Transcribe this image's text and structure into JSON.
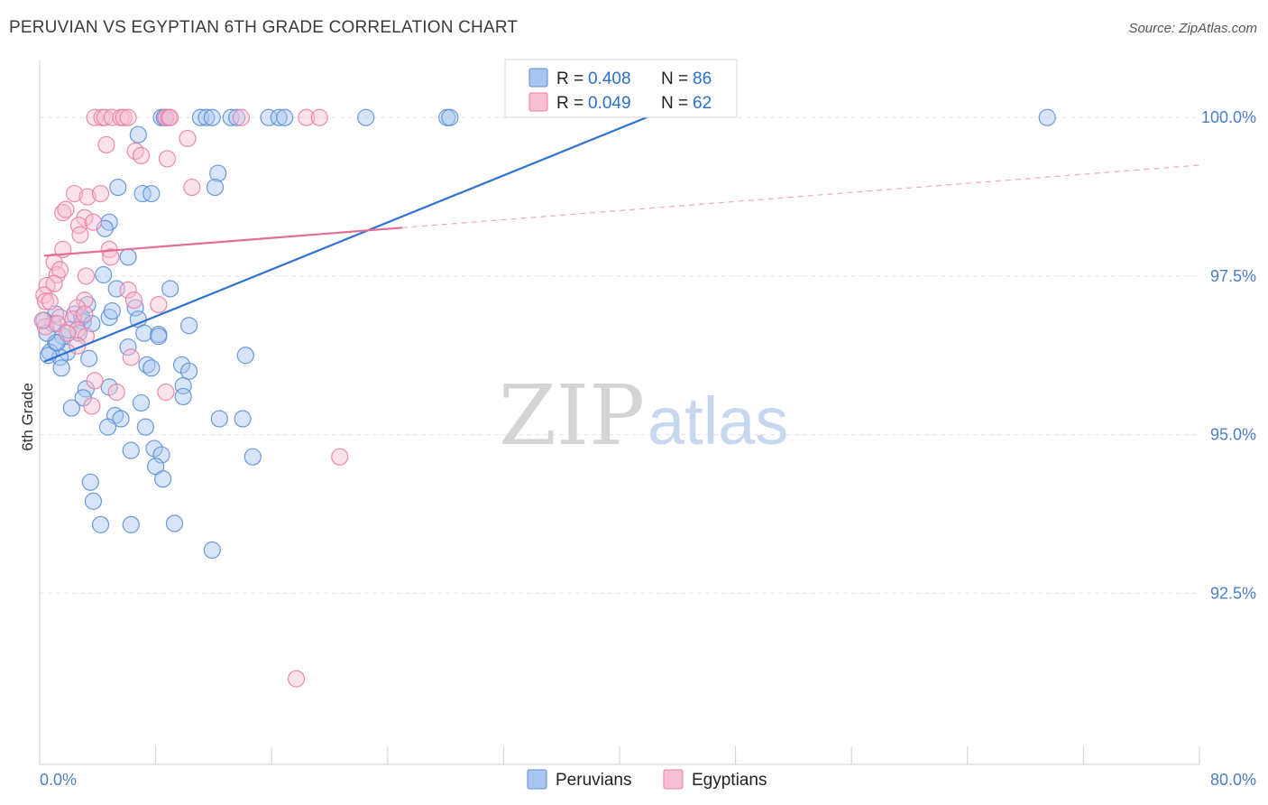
{
  "title": "PERUVIAN VS EGYPTIAN 6TH GRADE CORRELATION CHART",
  "source": "Source: ZipAtlas.com",
  "watermark": {
    "zip": "ZIP",
    "atlas": "atlas"
  },
  "chart_data": {
    "type": "scatter",
    "xlabel": "",
    "ylabel": "6th Grade",
    "xlim": [
      0,
      80
    ],
    "ylim": [
      89.8,
      100.9
    ],
    "x_tick_labels": [
      "0.0%",
      "80.0%"
    ],
    "y_ticks": [
      {
        "value": 100.0,
        "label": "100.0%"
      },
      {
        "value": 97.5,
        "label": "97.5%"
      },
      {
        "value": 95.0,
        "label": "95.0%"
      },
      {
        "value": 92.5,
        "label": "92.5%"
      }
    ],
    "legend": [
      {
        "name": "Peruvians",
        "R_label": "R = ",
        "R": "0.408",
        "N_label": "N = ",
        "N": "86",
        "color": "#5b8fd6",
        "fill": "#a9c6ef"
      },
      {
        "name": "Egyptians",
        "R_label": "R = ",
        "R": "0.049",
        "N_label": "N = ",
        "N": "62",
        "color": "#e880a4",
        "fill": "#f6bfd3"
      }
    ],
    "series": [
      {
        "name": "Peruvians",
        "color": "#5b8fd6",
        "trend": {
          "x0": 0.3,
          "y0": 96.15,
          "x1": 44.0,
          "y1": 100.2,
          "solid_end": 44.0
        },
        "points": [
          [
            8.4,
            100.0
          ],
          [
            8.6,
            100.0
          ],
          [
            8.7,
            100.0
          ],
          [
            11.1,
            100.0
          ],
          [
            11.5,
            100.0
          ],
          [
            11.9,
            100.0
          ],
          [
            13.2,
            100.0
          ],
          [
            13.6,
            100.0
          ],
          [
            15.8,
            100.0
          ],
          [
            16.5,
            100.0
          ],
          [
            16.9,
            100.0
          ],
          [
            22.5,
            100.0
          ],
          [
            28.1,
            100.0
          ],
          [
            28.3,
            100.0
          ],
          [
            69.5,
            100.0
          ],
          [
            6.8,
            99.73
          ],
          [
            12.3,
            99.12
          ],
          [
            5.4,
            98.9
          ],
          [
            7.1,
            98.8
          ],
          [
            7.7,
            98.8
          ],
          [
            12.1,
            98.9
          ],
          [
            4.8,
            98.35
          ],
          [
            4.5,
            98.25
          ],
          [
            6.1,
            97.8
          ],
          [
            4.4,
            97.52
          ],
          [
            9.0,
            97.3
          ],
          [
            5.3,
            97.3
          ],
          [
            6.6,
            97.0
          ],
          [
            3.3,
            97.05
          ],
          [
            2.4,
            96.9
          ],
          [
            2.9,
            96.85
          ],
          [
            4.8,
            96.85
          ],
          [
            6.8,
            96.82
          ],
          [
            3.0,
            96.78
          ],
          [
            7.2,
            96.6
          ],
          [
            8.2,
            96.58
          ],
          [
            10.3,
            96.72
          ],
          [
            8.2,
            96.55
          ],
          [
            0.9,
            96.75
          ],
          [
            1.1,
            96.9
          ],
          [
            0.3,
            96.8
          ],
          [
            1.6,
            96.55
          ],
          [
            1.1,
            96.45
          ],
          [
            0.7,
            96.3
          ],
          [
            1.9,
            96.3
          ],
          [
            1.4,
            96.22
          ],
          [
            3.4,
            96.2
          ],
          [
            6.1,
            96.38
          ],
          [
            0.6,
            96.25
          ],
          [
            7.4,
            96.1
          ],
          [
            9.8,
            96.1
          ],
          [
            14.2,
            96.25
          ],
          [
            7.7,
            96.05
          ],
          [
            10.3,
            96.0
          ],
          [
            1.5,
            96.05
          ],
          [
            9.9,
            95.77
          ],
          [
            3.2,
            95.72
          ],
          [
            4.8,
            95.75
          ],
          [
            9.9,
            95.6
          ],
          [
            3.0,
            95.58
          ],
          [
            2.2,
            95.42
          ],
          [
            7.0,
            95.5
          ],
          [
            5.2,
            95.3
          ],
          [
            5.6,
            95.25
          ],
          [
            12.4,
            95.25
          ],
          [
            14.0,
            95.25
          ],
          [
            4.7,
            95.12
          ],
          [
            7.3,
            95.12
          ],
          [
            6.3,
            94.75
          ],
          [
            7.9,
            94.78
          ],
          [
            8.4,
            94.68
          ],
          [
            14.7,
            94.65
          ],
          [
            8.0,
            94.5
          ],
          [
            8.5,
            94.3
          ],
          [
            3.5,
            94.25
          ],
          [
            3.7,
            93.95
          ],
          [
            4.2,
            93.58
          ],
          [
            6.3,
            93.58
          ],
          [
            9.3,
            93.6
          ],
          [
            11.9,
            93.18
          ],
          [
            2.0,
            96.65
          ],
          [
            2.7,
            96.6
          ],
          [
            5.0,
            96.95
          ],
          [
            1.2,
            96.45
          ],
          [
            3.6,
            96.75
          ],
          [
            0.5,
            96.6
          ]
        ]
      },
      {
        "name": "Egyptians",
        "color": "#e880a4",
        "trend": {
          "x0": 0.3,
          "y0": 97.82,
          "x1": 80.0,
          "y1": 99.25,
          "solid_end": 25.0
        },
        "points": [
          [
            3.8,
            100.0
          ],
          [
            4.3,
            100.0
          ],
          [
            4.5,
            100.0
          ],
          [
            5.0,
            100.0
          ],
          [
            5.6,
            100.0
          ],
          [
            5.8,
            100.0
          ],
          [
            6.1,
            100.0
          ],
          [
            8.7,
            100.0
          ],
          [
            8.9,
            100.0
          ],
          [
            9.0,
            100.0
          ],
          [
            13.9,
            100.0
          ],
          [
            18.4,
            100.0
          ],
          [
            19.3,
            100.0
          ],
          [
            10.2,
            99.67
          ],
          [
            4.6,
            99.57
          ],
          [
            6.6,
            99.47
          ],
          [
            7.0,
            99.4
          ],
          [
            8.8,
            99.35
          ],
          [
            10.5,
            98.9
          ],
          [
            2.4,
            98.8
          ],
          [
            3.3,
            98.75
          ],
          [
            4.2,
            98.8
          ],
          [
            1.6,
            98.5
          ],
          [
            1.8,
            98.55
          ],
          [
            3.1,
            98.42
          ],
          [
            2.7,
            98.3
          ],
          [
            3.7,
            98.35
          ],
          [
            2.8,
            98.15
          ],
          [
            1.6,
            97.92
          ],
          [
            4.8,
            97.92
          ],
          [
            4.9,
            97.8
          ],
          [
            1.0,
            97.72
          ],
          [
            1.2,
            97.52
          ],
          [
            1.4,
            97.6
          ],
          [
            3.2,
            97.5
          ],
          [
            0.5,
            97.35
          ],
          [
            1.0,
            97.38
          ],
          [
            0.3,
            97.2
          ],
          [
            0.4,
            97.1
          ],
          [
            6.1,
            97.28
          ],
          [
            0.7,
            97.1
          ],
          [
            3.1,
            97.12
          ],
          [
            2.6,
            97.0
          ],
          [
            6.5,
            97.12
          ],
          [
            8.2,
            97.05
          ],
          [
            1.4,
            96.85
          ],
          [
            2.3,
            96.82
          ],
          [
            3.1,
            96.9
          ],
          [
            0.4,
            96.7
          ],
          [
            1.2,
            96.75
          ],
          [
            2.6,
            96.65
          ],
          [
            3.2,
            96.55
          ],
          [
            2.6,
            96.4
          ],
          [
            6.3,
            96.22
          ],
          [
            3.8,
            95.85
          ],
          [
            5.3,
            95.67
          ],
          [
            8.7,
            95.67
          ],
          [
            3.6,
            95.45
          ],
          [
            20.7,
            94.65
          ],
          [
            17.7,
            91.15
          ],
          [
            0.2,
            96.8
          ],
          [
            1.9,
            96.6
          ]
        ]
      }
    ]
  }
}
